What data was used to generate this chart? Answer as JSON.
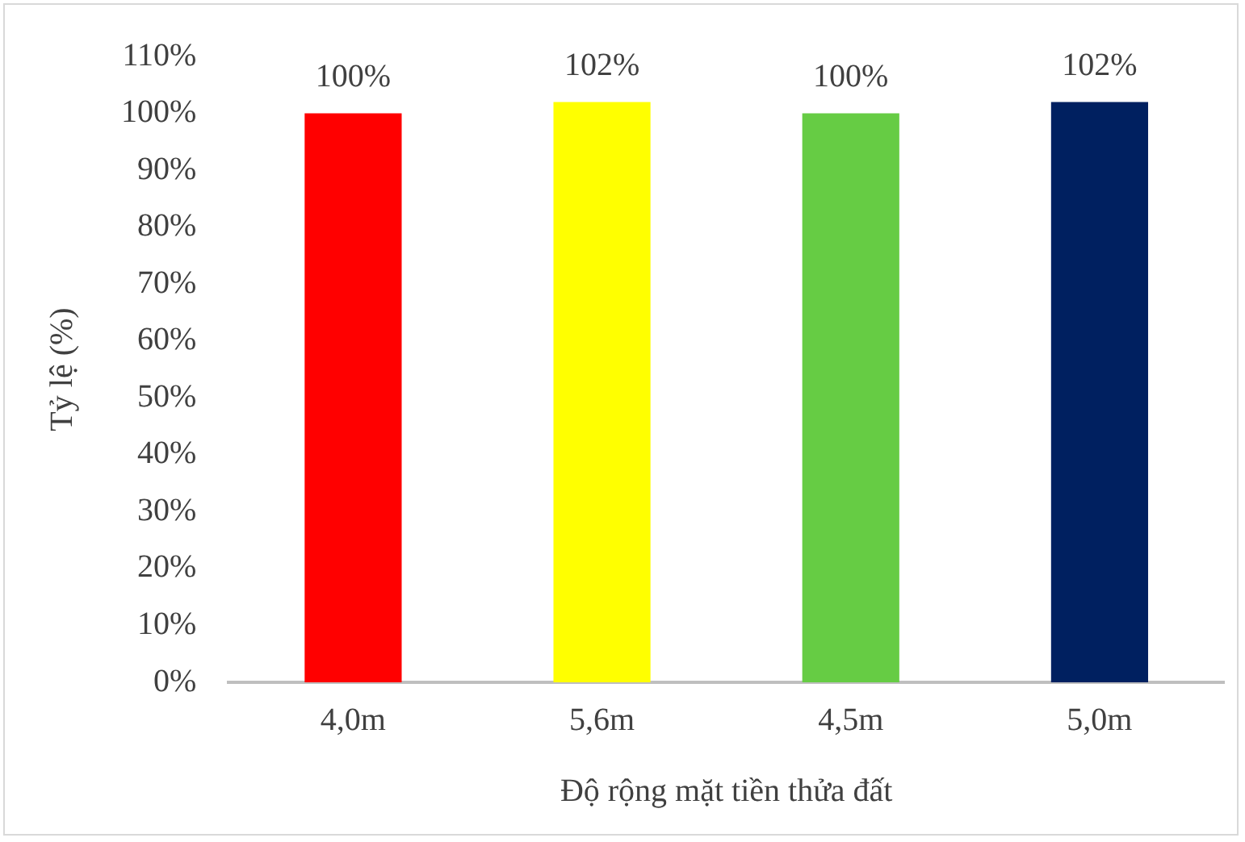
{
  "chart_data": {
    "type": "bar",
    "xlabel": "Độ rộng mặt tiền thửa đất",
    "ylabel": "Tỷ lệ (%)",
    "categories": [
      "4,0m",
      "5,6m",
      "4,5m",
      "5,0m"
    ],
    "values": [
      100,
      102,
      100,
      102
    ],
    "colors": [
      "#ff0000",
      "#ffff00",
      "#66cc44",
      "#002060"
    ],
    "value_labels": [
      "100%",
      "102%",
      "100%",
      "102%"
    ],
    "ylim": [
      0,
      110
    ],
    "yticks": [
      {
        "value": 0,
        "label": "0%"
      },
      {
        "value": 10,
        "label": "10%"
      },
      {
        "value": 20,
        "label": "20%"
      },
      {
        "value": 30,
        "label": "30%"
      },
      {
        "value": 40,
        "label": "40%"
      },
      {
        "value": 50,
        "label": "50%"
      },
      {
        "value": 60,
        "label": "60%"
      },
      {
        "value": 70,
        "label": "70%"
      },
      {
        "value": 80,
        "label": "80%"
      },
      {
        "value": 90,
        "label": "90%"
      },
      {
        "value": 100,
        "label": "100%"
      },
      {
        "value": 110,
        "label": "110%"
      }
    ],
    "grid": false,
    "legend": false
  }
}
